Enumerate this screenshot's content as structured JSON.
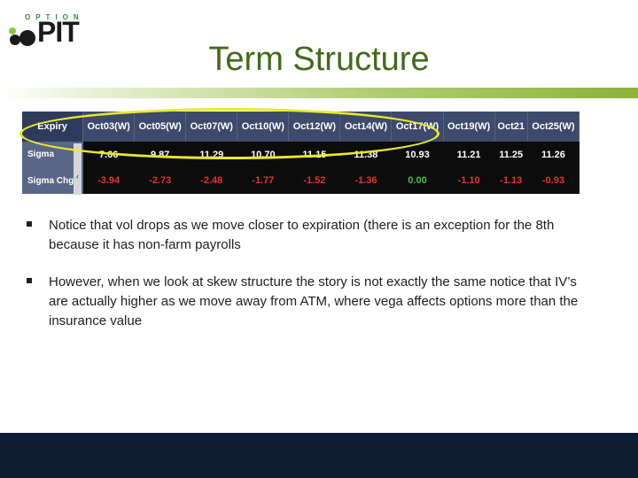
{
  "logo": {
    "top_text": "OPTION",
    "main_text": "PIT"
  },
  "title": "Term Structure",
  "table": {
    "header": [
      "Expiry",
      "Oct03(W)",
      "Oct05(W)",
      "Oct07(W)",
      "Oct10(W)",
      "Oct12(W)",
      "Oct14(W)",
      "Oct17(W)",
      "Oct19(W)",
      "Oct21",
      "Oct25(W)"
    ],
    "sigma": {
      "label": "Sigma",
      "values": [
        "7.66",
        "9.87",
        "11.29",
        "10.70",
        "11.15",
        "11.38",
        "10.93",
        "11.21",
        "11.25",
        "11.26"
      ]
    },
    "sigma_chg": {
      "label": "Sigma Chg",
      "values": [
        "-3.94",
        "-2.73",
        "-2.48",
        "-1.77",
        "-1.52",
        "-1.36",
        "0.00",
        "-1.10",
        "-1.13",
        "-0.93"
      ]
    },
    "scroll_glyph": "‹"
  },
  "bullets": [
    "Notice that vol drops as we move closer to expiration (there is an exception for the 8th because it has non-farm payrolls",
    " However, when we look at skew structure the story is not exactly the same notice that IV’s are actually higher as we move away from ATM, where vega affects options more than the insurance value"
  ],
  "colors": {
    "title": "#3f6b1a",
    "highlight": "#e8ea2a",
    "negative": "#e8342c",
    "zero": "#49c24a",
    "footer": "#0b1c33"
  }
}
